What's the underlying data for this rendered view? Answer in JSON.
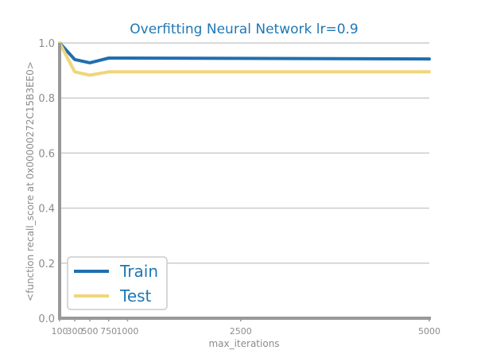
{
  "chart_data": {
    "type": "line",
    "title": "Overfitting Neural Network lr=0.9",
    "xlabel": "max_iterations",
    "ylabel": "<function recall_score at 0x00000272C15B3EE0>",
    "xlim": [
      100,
      5000
    ],
    "ylim": [
      0.0,
      1.0
    ],
    "x_ticks": [
      100,
      300,
      500,
      750,
      1000,
      2500,
      5000
    ],
    "y_ticks": [
      "0.0",
      "0.2",
      "0.4",
      "0.6",
      "0.8",
      "1.0"
    ],
    "grid": "horizontal",
    "legend_position": "lower-left",
    "x": [
      100,
      300,
      500,
      750,
      1000,
      2500,
      5000
    ],
    "series": [
      {
        "name": "Train",
        "color": "#1f6fb0",
        "values": [
          1.0,
          0.94,
          0.928,
          0.945,
          0.945,
          0.944,
          0.942
        ]
      },
      {
        "name": "Test",
        "color": "#f0d67a",
        "values": [
          1.0,
          0.895,
          0.883,
          0.895,
          0.895,
          0.895,
          0.895
        ]
      }
    ]
  }
}
